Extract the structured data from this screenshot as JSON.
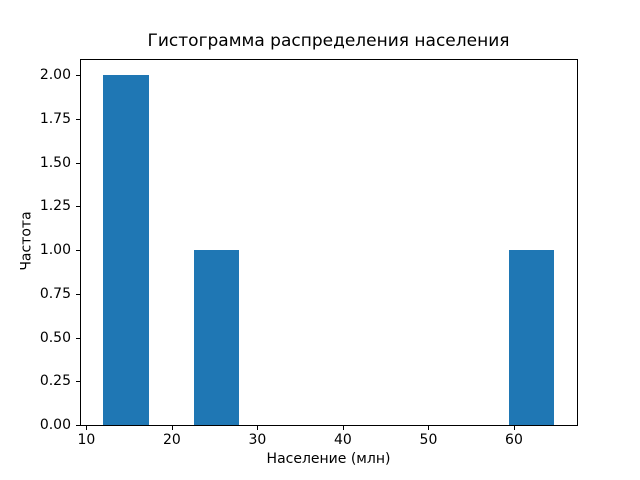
{
  "chart_data": {
    "type": "bar",
    "subtype": "histogram",
    "title": "Гистограмма распределения населения",
    "xlabel": "Население (млн)",
    "ylabel": "Частота",
    "xlim": [
      9.37,
      67.37
    ],
    "ylim": [
      0,
      2.086
    ],
    "grid": false,
    "legend_position": "none",
    "bar_color": "#1f77b4",
    "spine_color": "#000000",
    "background_color": "#ffffff",
    "bars": [
      {
        "x0": 12.0,
        "x1": 17.27,
        "count": 2
      },
      {
        "x0": 22.53,
        "x1": 27.8,
        "count": 1
      },
      {
        "x0": 59.4,
        "x1": 64.66,
        "count": 1
      }
    ],
    "x_ticks": [
      {
        "v": 10,
        "label": "10"
      },
      {
        "v": 20,
        "label": "20"
      },
      {
        "v": 30,
        "label": "30"
      },
      {
        "v": 40,
        "label": "40"
      },
      {
        "v": 50,
        "label": "50"
      },
      {
        "v": 60,
        "label": "60"
      }
    ],
    "y_ticks": [
      {
        "v": 0.0,
        "label": "0.00"
      },
      {
        "v": 0.25,
        "label": "0.25"
      },
      {
        "v": 0.5,
        "label": "0.50"
      },
      {
        "v": 0.75,
        "label": "0.75"
      },
      {
        "v": 1.0,
        "label": "1.00"
      },
      {
        "v": 1.25,
        "label": "1.25"
      },
      {
        "v": 1.5,
        "label": "1.50"
      },
      {
        "v": 1.75,
        "label": "1.75"
      },
      {
        "v": 2.0,
        "label": "2.00"
      }
    ]
  }
}
